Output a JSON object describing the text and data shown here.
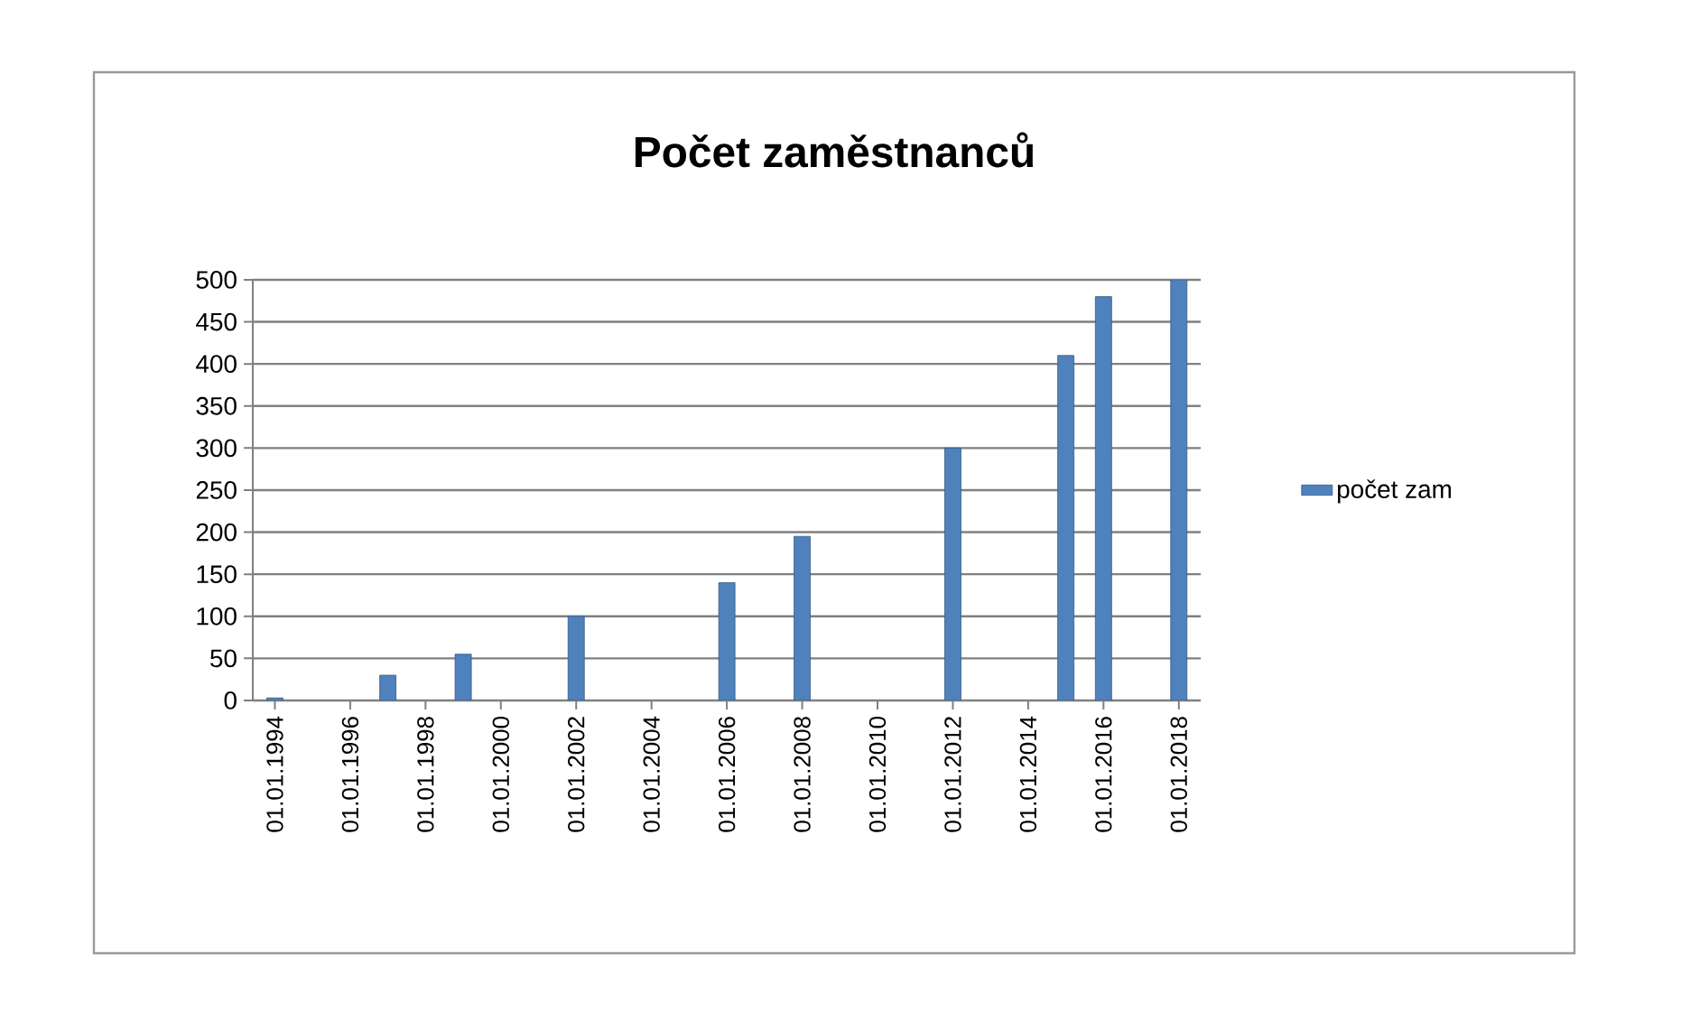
{
  "chart_data": {
    "type": "bar",
    "title": "Počet zaměstnanců",
    "x": [
      "1994-01-01",
      "1997-01-01",
      "1999-01-01",
      "2002-01-01",
      "2006-01-01",
      "2008-01-01",
      "2012-01-01",
      "2015-01-01",
      "2016-01-01",
      "2018-01-01"
    ],
    "series": [
      {
        "name": "počet zam",
        "color": "#4f81bd",
        "values": [
          3,
          30,
          55,
          100,
          140,
          195,
          300,
          410,
          480,
          500
        ]
      }
    ],
    "xlim": [
      "1993-06-01",
      "2018-08-01"
    ],
    "xticks": [
      {
        "value": "1994-01-01",
        "label": "01.01.1994"
      },
      {
        "value": "1996-01-01",
        "label": "01.01.1996"
      },
      {
        "value": "1998-01-01",
        "label": "01.01.1998"
      },
      {
        "value": "2000-01-01",
        "label": "01.01.2000"
      },
      {
        "value": "2002-01-01",
        "label": "01.01.2002"
      },
      {
        "value": "2004-01-01",
        "label": "01.01.2004"
      },
      {
        "value": "2006-01-01",
        "label": "01.01.2006"
      },
      {
        "value": "2008-01-01",
        "label": "01.01.2008"
      },
      {
        "value": "2010-01-01",
        "label": "01.01.2010"
      },
      {
        "value": "2012-01-01",
        "label": "01.01.2012"
      },
      {
        "value": "2014-01-01",
        "label": "01.01.2014"
      },
      {
        "value": "2016-01-01",
        "label": "01.01.2016"
      },
      {
        "value": "2018-01-01",
        "label": "01.01.2018"
      }
    ],
    "ylim": [
      0,
      500
    ],
    "yticks": [
      0,
      50,
      100,
      150,
      200,
      250,
      300,
      350,
      400,
      450,
      500
    ],
    "grid": "y",
    "legend": "right"
  }
}
